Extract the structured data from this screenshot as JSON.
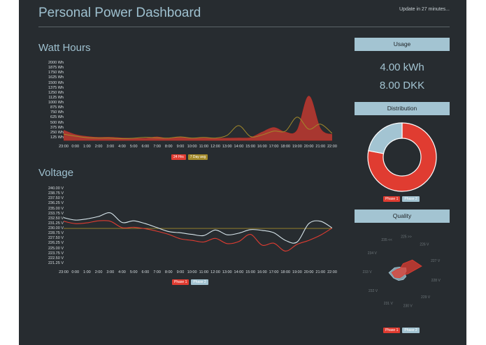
{
  "header": {
    "title": "Personal Power Dashboard",
    "update_text": "Update in 27 minutes..."
  },
  "watt_hours": {
    "title": "Watt Hours",
    "legend": [
      {
        "label": "24 Hrs",
        "color": "#e03c31"
      },
      {
        "label": "7 Day avg",
        "color": "#a38a2a"
      }
    ]
  },
  "voltage": {
    "title": "Voltage",
    "legend": [
      {
        "label": "Phase 1",
        "color": "#e03c31"
      },
      {
        "label": "Phase 2",
        "color": "#a3c4d2"
      }
    ]
  },
  "usage": {
    "title": "Usage",
    "kwh": "4.00 kWh",
    "cost": "8.00 DKK"
  },
  "distribution": {
    "title": "Distribution",
    "legend": [
      {
        "label": "Phase 1",
        "color": "#e03c31"
      },
      {
        "label": "Phase 2",
        "color": "#a3c4d2"
      }
    ]
  },
  "quality": {
    "title": "Quality",
    "legend": [
      {
        "label": "Phase 1",
        "color": "#e03c31"
      },
      {
        "label": "Phase 2",
        "color": "#a3c4d2"
      }
    ]
  },
  "chart_data": [
    {
      "type": "area",
      "id": "watt-hours",
      "title": "Watt Hours",
      "categories": [
        "23:00",
        "0:00",
        "1:00",
        "2:00",
        "3:00",
        "4:00",
        "5:00",
        "6:00",
        "7:00",
        "8:00",
        "9:00",
        "10:00",
        "11:00",
        "12:00",
        "13:00",
        "14:00",
        "15:00",
        "16:00",
        "17:00",
        "18:00",
        "19:00",
        "20:00",
        "21:00",
        "22:00"
      ],
      "y_ticks": [
        "2000 Wh",
        "1875 Wh",
        "1750 Wh",
        "1625 Wh",
        "1500 Wh",
        "1375 Wh",
        "1250 Wh",
        "1125 Wh",
        "1000 Wh",
        "875 Wh",
        "750 Wh",
        "625 Wh",
        "500 Wh",
        "375 Wh",
        "250 Wh",
        "125 Wh"
      ],
      "ylim": [
        0,
        2000
      ],
      "series": [
        {
          "name": "24 Hrs",
          "color": "#e03c31",
          "values": [
            260,
            150,
            100,
            75,
            80,
            60,
            55,
            50,
            90,
            45,
            85,
            55,
            60,
            50,
            55,
            60,
            70,
            210,
            330,
            210,
            260,
            1140,
            300,
            150
          ]
        },
        {
          "name": "7 Day avg",
          "color": "#a38a2a",
          "values": [
            160,
            110,
            70,
            60,
            60,
            45,
            55,
            80,
            65,
            60,
            90,
            60,
            75,
            60,
            130,
            380,
            100,
            140,
            240,
            240,
            600,
            290,
            420,
            180
          ]
        }
      ]
    },
    {
      "type": "line",
      "id": "voltage",
      "title": "Voltage",
      "categories": [
        "23:00",
        "0:00",
        "1:00",
        "2:00",
        "3:00",
        "4:00",
        "5:00",
        "6:00",
        "7:00",
        "8:00",
        "9:00",
        "10:00",
        "11:00",
        "12:00",
        "13:00",
        "14:00",
        "15:00",
        "16:00",
        "17:00",
        "18:00",
        "19:00",
        "20:00",
        "21:00",
        "22:00"
      ],
      "y_ticks": [
        "240.00 V",
        "238.75 V",
        "237.50 V",
        "236.25 V",
        "235.00 V",
        "233.75 V",
        "232.50 V",
        "231.25 V",
        "230.00 V",
        "228.75 V",
        "227.50 V",
        "226.25 V",
        "225.00 V",
        "223.75 V",
        "222.50 V",
        "221.25 V"
      ],
      "ylim": [
        220,
        240
      ],
      "reference_line": 230,
      "series": [
        {
          "name": "Phase 1",
          "color": "#e03c31",
          "values": [
            231.8,
            231.2,
            231.4,
            231.9,
            231.8,
            230.2,
            230.3,
            229.9,
            229.3,
            228.5,
            227.4,
            227.0,
            226.6,
            227.5,
            226.2,
            226.7,
            228.5,
            225.8,
            226.3,
            224.3,
            226.0,
            227.0,
            228.3,
            230.1
          ]
        },
        {
          "name": "Phase 2",
          "color": "#d8e6ec",
          "values": [
            232.7,
            232.1,
            232.4,
            233.0,
            233.9,
            231.5,
            231.9,
            231.2,
            230.2,
            229.2,
            228.9,
            228.5,
            228.2,
            229.6,
            228.4,
            228.8,
            229.7,
            229.5,
            228.9,
            227.0,
            226.6,
            231.2,
            231.8,
            230.1
          ]
        }
      ]
    },
    {
      "type": "pie",
      "id": "distribution",
      "title": "Distribution",
      "labels": [
        "Phase 1",
        "Phase 2"
      ],
      "values": [
        78,
        22
      ],
      "colors": [
        "#e03c31",
        "#a3c4d2"
      ]
    },
    {
      "type": "radar",
      "id": "quality",
      "title": "Quality",
      "axes": [
        "225 >>",
        "226 V",
        "227 V",
        "228 V",
        "229 V",
        "230 V",
        "231 V",
        "232 V",
        "233 V",
        "234 V",
        "235 <<"
      ],
      "series": [
        {
          "name": "Phase 1",
          "color": "#e03c31",
          "values": [
            0.3,
            0.55,
            0.7,
            0.2,
            0.1,
            0.12,
            0.2,
            0.3,
            0.35,
            0.2,
            0.15
          ]
        },
        {
          "name": "Phase 2",
          "color": "#a3c4d2",
          "values": [
            0.15,
            0.2,
            0.15,
            0.1,
            0.2,
            0.25,
            0.3,
            0.35,
            0.45,
            0.3,
            0.2
          ]
        }
      ]
    }
  ]
}
